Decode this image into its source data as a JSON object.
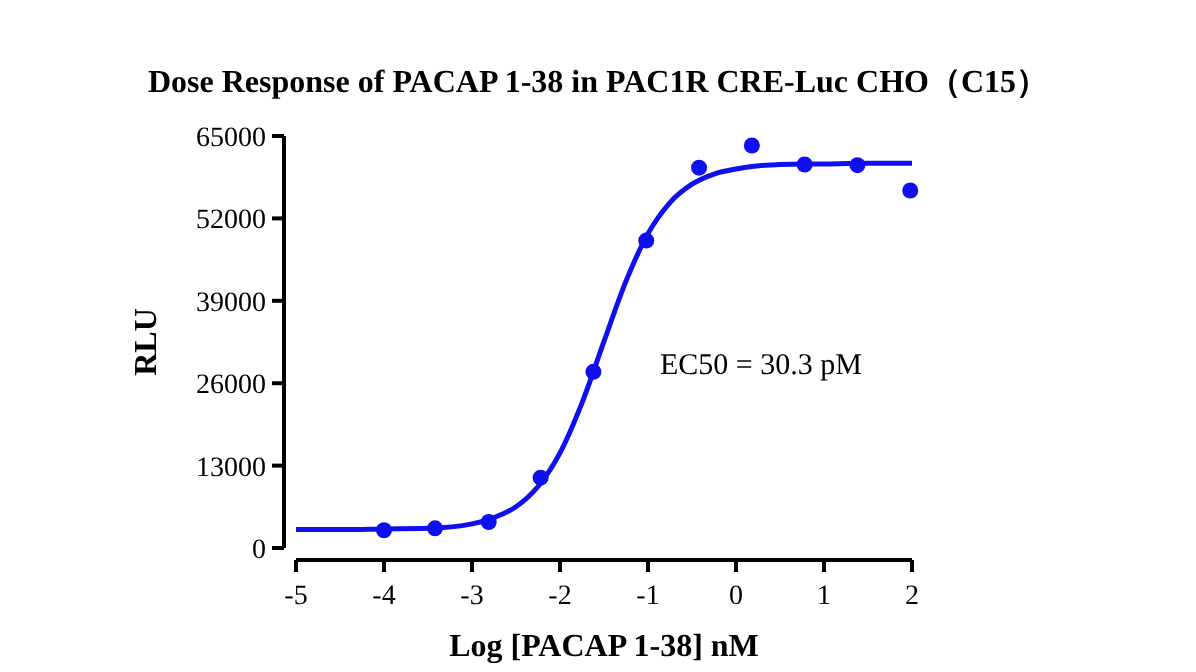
{
  "chart_data": {
    "type": "scatter",
    "title": "Dose Response of PACAP 1-38 in PAC1R CRE-Luc CHO（C15）",
    "xlabel": "Log [PACAP 1-38] nM",
    "ylabel": "RLU",
    "series": [
      {
        "color": "#1010ee",
        "marker": "circle",
        "x": [
          -4.0,
          -3.42,
          -2.81,
          -2.22,
          -1.62,
          -1.02,
          -0.42,
          0.18,
          0.78,
          1.38,
          1.98
        ],
        "values": [
          2800,
          3100,
          4100,
          11100,
          27800,
          48500,
          60000,
          63500,
          60500,
          60400,
          56400
        ]
      },
      {
        "type": "line",
        "marker": "none",
        "color": "#1010ee",
        "x": [
          -5,
          -4.5,
          -4,
          -3.5,
          -3,
          -2.75,
          -2.5,
          -2.25,
          -2,
          -1.75,
          -1.5,
          -1.25,
          -1,
          -0.75,
          -0.5,
          -0.25,
          0,
          0.5,
          1,
          1.5,
          2
        ],
        "values": [
          2900,
          2900,
          3000,
          3100,
          3800,
          4800,
          6500,
          9700,
          15000,
          22900,
          32600,
          42100,
          49600,
          54500,
          57400,
          59000,
          59800,
          60500,
          60600,
          60700,
          60700
        ]
      }
    ],
    "annotations": [
      "EC50 = 30.3 pM"
    ],
    "xlim": [
      -5,
      2
    ],
    "xticks": [
      -5,
      -4,
      -3,
      -2,
      -1,
      0,
      1,
      2
    ],
    "ylim": [
      0,
      65000
    ],
    "yticks": [
      0,
      13000,
      26000,
      39000,
      52000,
      65000
    ],
    "grid": false
  }
}
